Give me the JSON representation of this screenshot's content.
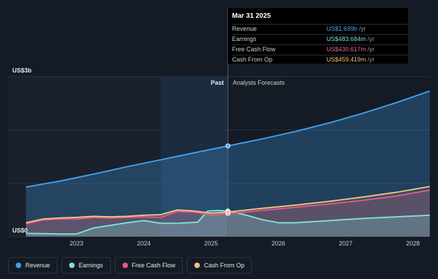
{
  "tooltip": {
    "date": "Mar 31 2025",
    "rows": [
      {
        "label": "Revenue",
        "value": "US$1.699b",
        "unit": "/yr",
        "color": "#4fa6f0"
      },
      {
        "label": "Earnings",
        "value": "US$483.684m",
        "unit": "/yr",
        "color": "#7ee0d8"
      },
      {
        "label": "Free Cash Flow",
        "value": "US$430.617m",
        "unit": "/yr",
        "color": "#e46a9a"
      },
      {
        "label": "Cash From Op",
        "value": "US$459.419m",
        "unit": "/yr",
        "color": "#f3c27a"
      }
    ]
  },
  "legend": [
    {
      "label": "Revenue",
      "color": "#3fa0f0"
    },
    {
      "label": "Earnings",
      "color": "#7ee0d8"
    },
    {
      "label": "Free Cash Flow",
      "color": "#e4578e"
    },
    {
      "label": "Cash From Op",
      "color": "#f3c27a"
    }
  ],
  "chart_data": {
    "type": "line",
    "y_top_label": "US$3b",
    "y_bottom_label": "US$0",
    "ylim": [
      0,
      3.0
    ],
    "xlim": [
      2022.25,
      2028.25
    ],
    "x_ticks": [
      2023,
      2024,
      2025,
      2026,
      2027,
      2028
    ],
    "x_tick_labels": [
      "2023",
      "2024",
      "2025",
      "2026",
      "2027",
      "2028"
    ],
    "past_label": "Past",
    "forecast_label": "Analysts Forecasts",
    "divider_x": 2025.25,
    "highlight_start_x": 2024.25,
    "series": [
      {
        "name": "Revenue",
        "color": "#3fa0f0",
        "x": [
          2022.25,
          2022.75,
          2023.25,
          2023.75,
          2024.25,
          2024.75,
          2025.25,
          2025.75,
          2026.25,
          2026.75,
          2027.25,
          2027.75,
          2028.25
        ],
        "y": [
          0.93,
          1.04,
          1.17,
          1.31,
          1.44,
          1.57,
          1.7,
          1.83,
          1.97,
          2.13,
          2.31,
          2.51,
          2.73
        ]
      },
      {
        "name": "Earnings",
        "color": "#7ee0d8",
        "x": [
          2022.25,
          2022.75,
          2023.0,
          2023.25,
          2023.5,
          2023.75,
          2024.0,
          2024.25,
          2024.5,
          2024.8,
          2024.95,
          2025.1,
          2025.25,
          2025.5,
          2025.75,
          2026.0,
          2026.25,
          2026.75,
          2027.25,
          2027.75,
          2028.25
        ],
        "y": [
          0.06,
          0.05,
          0.05,
          0.16,
          0.21,
          0.26,
          0.3,
          0.25,
          0.25,
          0.27,
          0.48,
          0.49,
          0.48,
          0.41,
          0.32,
          0.26,
          0.26,
          0.3,
          0.34,
          0.37,
          0.4
        ]
      },
      {
        "name": "Free Cash Flow",
        "color": "#e4578e",
        "x": [
          2022.25,
          2022.5,
          2022.75,
          2023.0,
          2023.25,
          2023.5,
          2023.75,
          2024.0,
          2024.25,
          2024.5,
          2024.75,
          2025.0,
          2025.25,
          2025.75,
          2026.25,
          2026.75,
          2027.25,
          2027.75,
          2028.25
        ],
        "y": [
          0.24,
          0.31,
          0.33,
          0.33,
          0.36,
          0.35,
          0.36,
          0.37,
          0.36,
          0.47,
          0.46,
          0.4,
          0.43,
          0.49,
          0.55,
          0.61,
          0.68,
          0.76,
          0.87
        ]
      },
      {
        "name": "Cash From Op",
        "color": "#f3c27a",
        "x": [
          2022.25,
          2022.5,
          2022.75,
          2023.0,
          2023.25,
          2023.5,
          2023.75,
          2024.0,
          2024.25,
          2024.5,
          2024.75,
          2025.0,
          2025.25,
          2025.75,
          2026.25,
          2026.75,
          2027.25,
          2027.75,
          2028.25
        ],
        "y": [
          0.26,
          0.33,
          0.35,
          0.36,
          0.38,
          0.37,
          0.38,
          0.4,
          0.41,
          0.5,
          0.48,
          0.44,
          0.46,
          0.53,
          0.59,
          0.66,
          0.74,
          0.83,
          0.94
        ]
      }
    ]
  }
}
